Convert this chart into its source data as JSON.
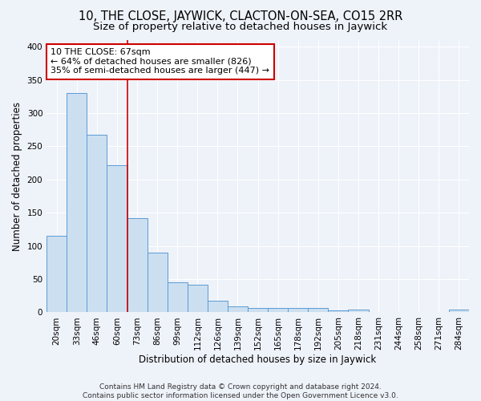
{
  "title": "10, THE CLOSE, JAYWICK, CLACTON-ON-SEA, CO15 2RR",
  "subtitle": "Size of property relative to detached houses in Jaywick",
  "xlabel": "Distribution of detached houses by size in Jaywick",
  "ylabel": "Number of detached properties",
  "categories": [
    "20sqm",
    "33sqm",
    "46sqm",
    "60sqm",
    "73sqm",
    "86sqm",
    "99sqm",
    "112sqm",
    "126sqm",
    "139sqm",
    "152sqm",
    "165sqm",
    "178sqm",
    "192sqm",
    "205sqm",
    "218sqm",
    "231sqm",
    "244sqm",
    "258sqm",
    "271sqm",
    "284sqm"
  ],
  "values": [
    115,
    330,
    268,
    222,
    142,
    90,
    45,
    42,
    18,
    9,
    7,
    6,
    7,
    6,
    3,
    4,
    0,
    0,
    0,
    0,
    4
  ],
  "bar_color": "#ccdff0",
  "bar_edge_color": "#5b9bd5",
  "vline_x": 3.5,
  "vline_color": "#cc0000",
  "annotation_line1": "10 THE CLOSE: 67sqm",
  "annotation_line2": "← 64% of detached houses are smaller (826)",
  "annotation_line3": "35% of semi-detached houses are larger (447) →",
  "annotation_box_color": "#ffffff",
  "annotation_box_edge": "#cc0000",
  "ylim": [
    0,
    410
  ],
  "yticks": [
    0,
    50,
    100,
    150,
    200,
    250,
    300,
    350,
    400
  ],
  "footer": "Contains HM Land Registry data © Crown copyright and database right 2024.\nContains public sector information licensed under the Open Government Licence v3.0.",
  "background_color": "#eef2f9",
  "grid_color": "#ffffff",
  "title_fontsize": 10.5,
  "subtitle_fontsize": 9.5,
  "axis_label_fontsize": 8.5,
  "tick_fontsize": 7.5,
  "footer_fontsize": 6.5,
  "annotation_fontsize": 8
}
